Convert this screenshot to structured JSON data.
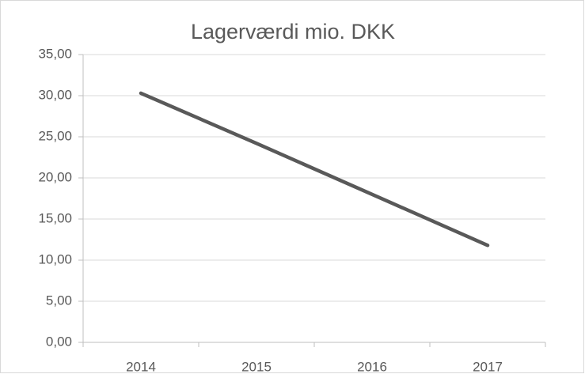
{
  "chart_data": {
    "type": "line",
    "title": "Lagerværdi mio. DKK",
    "categories": [
      "2014",
      "2015",
      "2016",
      "2017"
    ],
    "series": [
      {
        "name": "Lagerværdi",
        "color": "#595959",
        "values": [
          30.3,
          24.2,
          18.0,
          11.8
        ]
      }
    ],
    "ylim": [
      0,
      35
    ],
    "yticks": [
      {
        "value": 0,
        "label": "0,00"
      },
      {
        "value": 5,
        "label": "5,00"
      },
      {
        "value": 10,
        "label": "10,00"
      },
      {
        "value": 15,
        "label": "15,00"
      },
      {
        "value": 20,
        "label": "20,00"
      },
      {
        "value": 25,
        "label": "25,00"
      },
      {
        "value": 30,
        "label": "30,00"
      },
      {
        "value": 35,
        "label": "35,00"
      }
    ],
    "grid": true
  }
}
